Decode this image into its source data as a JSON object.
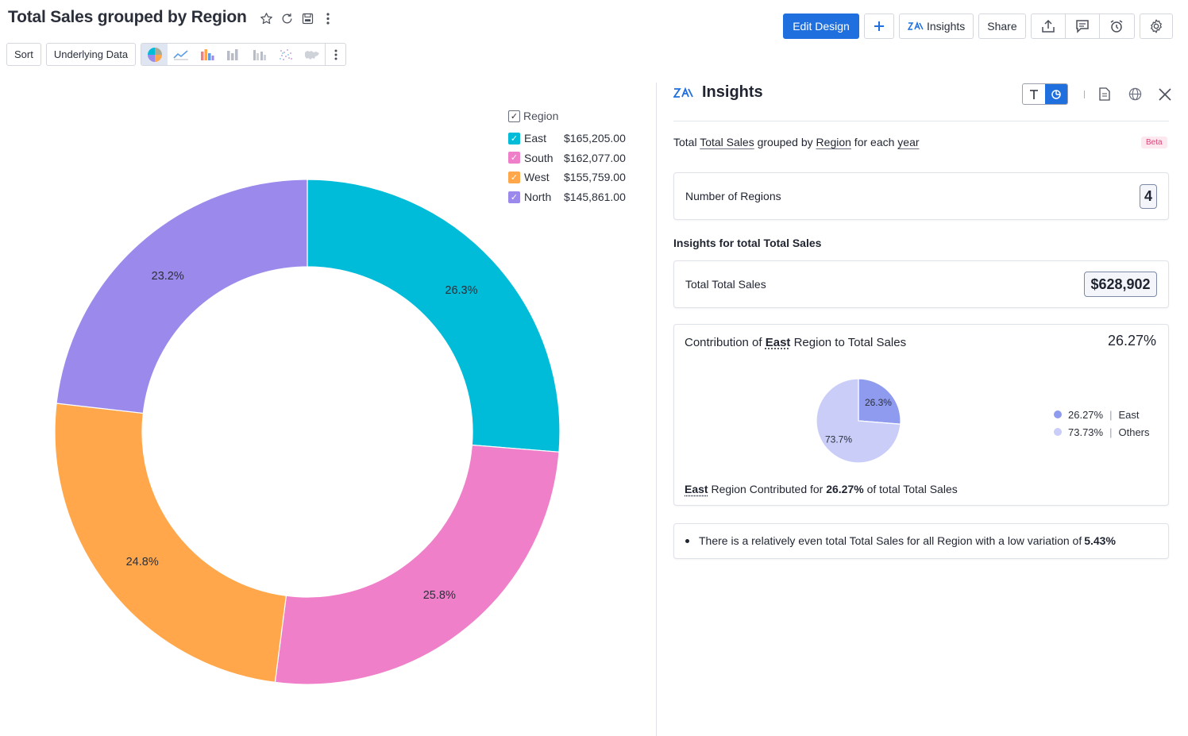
{
  "header": {
    "title": "Total Sales grouped by Region",
    "sort_label": "Sort",
    "underlying_label": "Underlying Data",
    "edit_design_label": "Edit Design",
    "insights_label": "Insights",
    "share_label": "Share",
    "title_icons": [
      "star-icon",
      "refresh-icon",
      "save-icon",
      "more-vertical-icon"
    ],
    "chart_types": [
      "pie-chart-icon",
      "line-chart-icon",
      "bar-chart-icon",
      "stacked-bar-icon",
      "grouped-bar-icon",
      "scatter-icon",
      "map-icon"
    ]
  },
  "legend": {
    "title": "Region",
    "items": [
      {
        "name": "East",
        "value": "$165,205.00",
        "color": "#00bcd8"
      },
      {
        "name": "South",
        "value": "$162,077.00",
        "color": "#f07fc9"
      },
      {
        "name": "West",
        "value": "$155,759.00",
        "color": "#ffa74a"
      },
      {
        "name": "North",
        "value": "$145,861.00",
        "color": "#9b89ec"
      }
    ]
  },
  "chart_data": {
    "type": "pie",
    "donut": true,
    "categories": [
      "East",
      "South",
      "West",
      "North"
    ],
    "values": [
      165205,
      162077,
      155759,
      145861
    ],
    "labels": [
      "26.3%",
      "25.8%",
      "24.8%",
      "23.2%"
    ],
    "colors": [
      "#00bcd8",
      "#f07fc9",
      "#ffa74a",
      "#9b89ec"
    ],
    "legend_title": "Region",
    "legend_position": "top-right"
  },
  "insights": {
    "title": "Insights",
    "summary": {
      "p1": "Total ",
      "u1": "Total Sales",
      "p2": " grouped by ",
      "u2": "Region",
      "p3": " for each ",
      "u3": "year"
    },
    "beta": "Beta",
    "regions_label": "Number of Regions",
    "regions_value": "4",
    "section_title": "Insights for total Total Sales",
    "total_label": "Total Total Sales",
    "total_value": "$628,902",
    "contrib": {
      "t1": "Contribution of ",
      "region": "East",
      "t2": " Region to Total Sales",
      "pct": "26.27%",
      "mini_chart": {
        "type": "pie",
        "categories": [
          "East",
          "Others"
        ],
        "values": [
          26.27,
          73.73
        ],
        "labels": [
          "26.3%",
          "73.7%"
        ],
        "colors": [
          "#8f9bef",
          "#c9cdf8"
        ]
      },
      "legend": [
        {
          "pct": "26.27%",
          "name": "East",
          "color": "#8f9bef"
        },
        {
          "pct": "73.73%",
          "name": "Others",
          "color": "#c9cdf8"
        }
      ],
      "foot_region": "East",
      "foot_t1": " Region Contributed for ",
      "foot_pct": "26.27%",
      "foot_t2": " of total Total Sales"
    },
    "note": {
      "text": "There is a relatively even total Total Sales for all Region with a low variation of ",
      "value": "5.43%"
    }
  }
}
